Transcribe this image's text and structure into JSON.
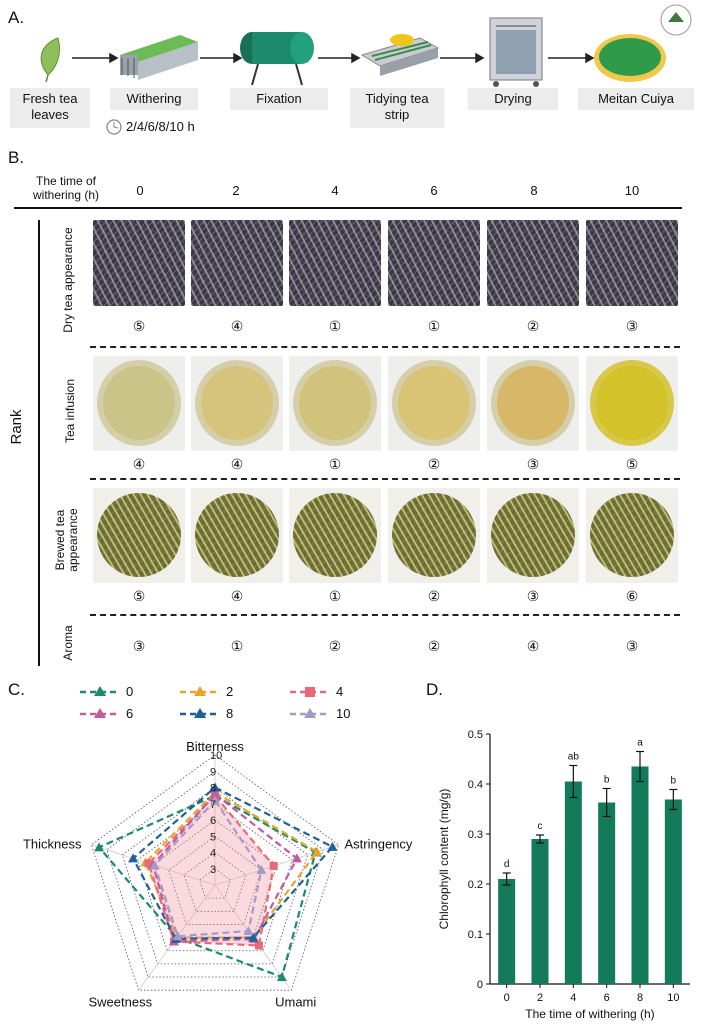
{
  "panels": {
    "a": "A.",
    "b": "B.",
    "c": "C.",
    "d": "D."
  },
  "workflow": {
    "steps": [
      "Fresh tea\nleaves",
      "Withering",
      "Fixation",
      "Tidying tea\nstrip",
      "Drying",
      "Meitan Cuiya"
    ],
    "withering_times": "2/4/6/8/10 h"
  },
  "table": {
    "header_label": "The time of\nwithering (h)",
    "times": [
      "0",
      "2",
      "4",
      "6",
      "8",
      "10"
    ],
    "rank_label": "Rank",
    "rows": [
      {
        "label": "Dry tea appearance",
        "ranks": [
          "⑤",
          "④",
          "①",
          "①",
          "②",
          "③"
        ]
      },
      {
        "label": "Tea infusion",
        "ranks": [
          "④",
          "④",
          "①",
          "②",
          "③",
          "⑤"
        ]
      },
      {
        "label": "Brewed tea\nappearance",
        "ranks": [
          "⑤",
          "④",
          "①",
          "②",
          "③",
          "⑥"
        ]
      },
      {
        "label": "Aroma",
        "ranks": [
          "③",
          "①",
          "②",
          "②",
          "④",
          "③"
        ]
      }
    ]
  },
  "radar": {
    "axes": [
      "Bitterness",
      "Astringency",
      "Umami",
      "Sweetness",
      "Thickness"
    ],
    "scale_ticks": [
      "3",
      "4",
      "5",
      "6",
      "7",
      "8",
      "9",
      "10"
    ],
    "legend": [
      "0",
      "2",
      "4",
      "6",
      "8",
      "10"
    ],
    "series": [
      {
        "name": "0",
        "color": "#1d8a6a",
        "values": [
          7.5,
          8.5,
          9.0,
          6.0,
          9.5
        ]
      },
      {
        "name": "2",
        "color": "#e8a52a",
        "values": [
          7.7,
          8.6,
          6.0,
          6.0,
          6.5
        ]
      },
      {
        "name": "4",
        "color": "#e86a78",
        "values": [
          7.5,
          5.8,
          6.6,
          6.3,
          6.3
        ]
      },
      {
        "name": "6",
        "color": "#c45aa0",
        "values": [
          7.6,
          7.3,
          6.1,
          6.3,
          6.0
        ]
      },
      {
        "name": "8",
        "color": "#1f5f9a",
        "values": [
          8.0,
          9.6,
          6.0,
          6.1,
          7.3
        ]
      },
      {
        "name": "10",
        "color": "#a89ac8",
        "values": [
          7.2,
          5.0,
          5.5,
          5.9,
          5.9
        ]
      }
    ]
  },
  "chart_data": {
    "type": "bar",
    "title": "",
    "categories": [
      "0",
      "2",
      "4",
      "6",
      "8",
      "10"
    ],
    "values": [
      0.21,
      0.29,
      0.405,
      0.363,
      0.435,
      0.369
    ],
    "errors": [
      0.012,
      0.008,
      0.032,
      0.028,
      0.03,
      0.02
    ],
    "significance": [
      "d",
      "c",
      "ab",
      "b",
      "a",
      "b"
    ],
    "xlabel": "The time of withering (h)",
    "ylabel": "Chlorophyll content (mg/g)",
    "ylim": [
      0,
      0.5
    ],
    "yticks": [
      "0",
      "0.1",
      "0.2",
      "0.3",
      "0.4",
      "0.5"
    ],
    "bar_color": "#137a5a"
  }
}
